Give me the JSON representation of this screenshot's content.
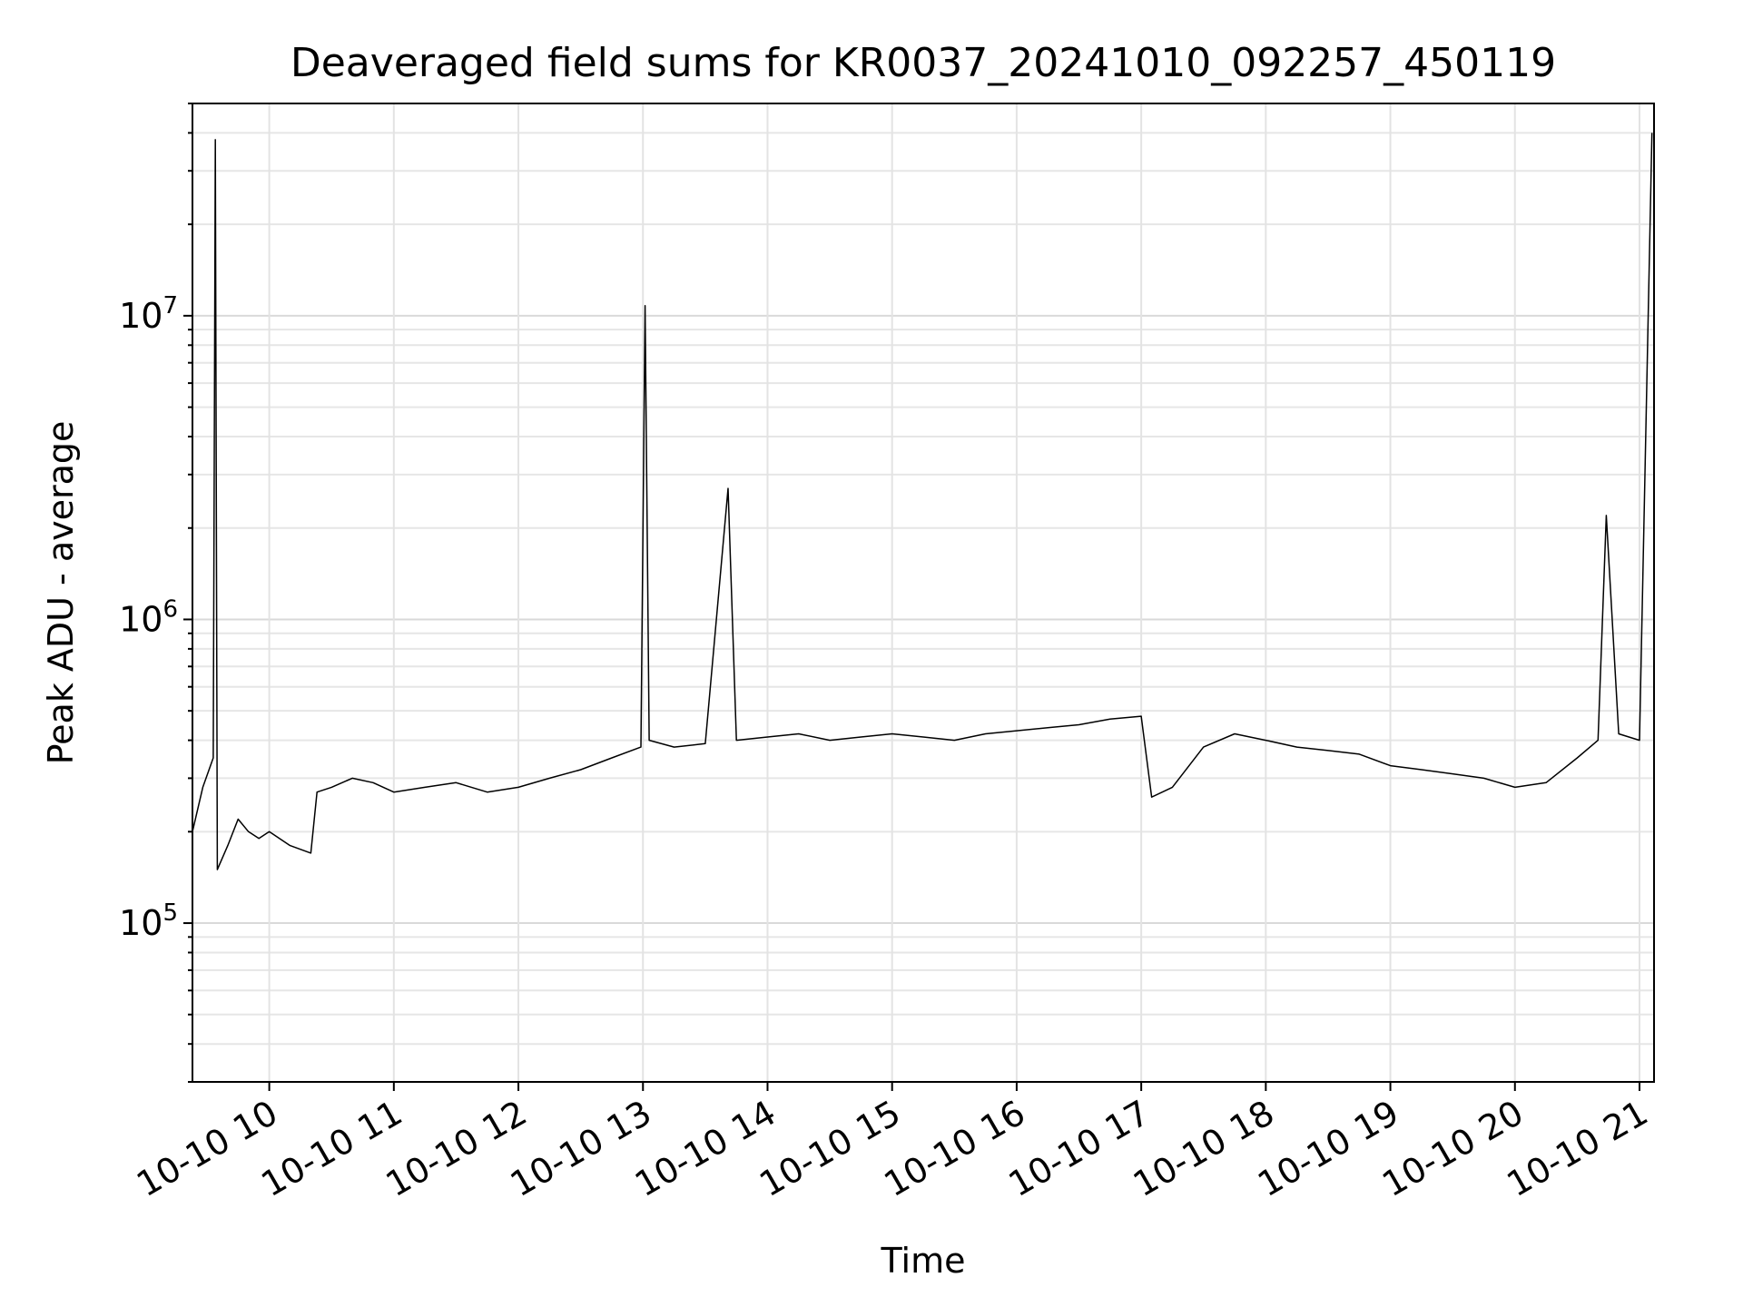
{
  "chart_data": {
    "type": "line",
    "title": "Deaveraged field sums for KR0037_20241010_092257_450119",
    "xlabel": "Time",
    "ylabel": "Peak ADU - average",
    "y_scale": "log",
    "ylim": [
      30000,
      50000000
    ],
    "xlim": [
      "2024-10-10 09:23",
      "2024-10-10 21:07"
    ],
    "grid": true,
    "legend": "none",
    "line_color": "#000000",
    "x_ticks": [
      {
        "t": "2024-10-10 10:00",
        "label": "10-10 10"
      },
      {
        "t": "2024-10-10 11:00",
        "label": "10-10 11"
      },
      {
        "t": "2024-10-10 12:00",
        "label": "10-10 12"
      },
      {
        "t": "2024-10-10 13:00",
        "label": "10-10 13"
      },
      {
        "t": "2024-10-10 14:00",
        "label": "10-10 14"
      },
      {
        "t": "2024-10-10 15:00",
        "label": "10-10 15"
      },
      {
        "t": "2024-10-10 16:00",
        "label": "10-10 16"
      },
      {
        "t": "2024-10-10 17:00",
        "label": "10-10 17"
      },
      {
        "t": "2024-10-10 18:00",
        "label": "10-10 18"
      },
      {
        "t": "2024-10-10 19:00",
        "label": "10-10 19"
      },
      {
        "t": "2024-10-10 20:00",
        "label": "10-10 20"
      },
      {
        "t": "2024-10-10 21:00",
        "label": "10-10 21"
      }
    ],
    "y_ticks": [
      {
        "value": 100000,
        "base": "10",
        "exp": "5"
      },
      {
        "value": 1000000,
        "base": "10",
        "exp": "6"
      },
      {
        "value": 10000000,
        "base": "10",
        "exp": "7"
      }
    ],
    "series": [
      {
        "x": [
          "2024-10-10 09:23",
          "2024-10-10 09:28",
          "2024-10-10 09:33",
          "2024-10-10 09:34",
          "2024-10-10 09:35",
          "2024-10-10 09:40",
          "2024-10-10 09:45",
          "2024-10-10 09:50",
          "2024-10-10 09:55",
          "2024-10-10 10:00",
          "2024-10-10 10:10",
          "2024-10-10 10:20",
          "2024-10-10 10:23",
          "2024-10-10 10:30",
          "2024-10-10 10:40",
          "2024-10-10 10:50",
          "2024-10-10 11:00",
          "2024-10-10 11:15",
          "2024-10-10 11:30",
          "2024-10-10 11:45",
          "2024-10-10 12:00",
          "2024-10-10 12:15",
          "2024-10-10 12:30",
          "2024-10-10 12:45",
          "2024-10-10 12:59",
          "2024-10-10 13:01",
          "2024-10-10 13:03",
          "2024-10-10 13:15",
          "2024-10-10 13:30",
          "2024-10-10 13:41",
          "2024-10-10 13:45",
          "2024-10-10 14:00",
          "2024-10-10 14:15",
          "2024-10-10 14:30",
          "2024-10-10 14:45",
          "2024-10-10 15:00",
          "2024-10-10 15:15",
          "2024-10-10 15:30",
          "2024-10-10 15:45",
          "2024-10-10 16:00",
          "2024-10-10 16:15",
          "2024-10-10 16:30",
          "2024-10-10 16:45",
          "2024-10-10 17:00",
          "2024-10-10 17:05",
          "2024-10-10 17:15",
          "2024-10-10 17:30",
          "2024-10-10 17:45",
          "2024-10-10 18:00",
          "2024-10-10 18:15",
          "2024-10-10 18:30",
          "2024-10-10 18:45",
          "2024-10-10 19:00",
          "2024-10-10 19:15",
          "2024-10-10 19:30",
          "2024-10-10 19:45",
          "2024-10-10 20:00",
          "2024-10-10 20:15",
          "2024-10-10 20:30",
          "2024-10-10 20:40",
          "2024-10-10 20:44",
          "2024-10-10 20:50",
          "2024-10-10 21:00",
          "2024-10-10 21:06"
        ],
        "y": [
          200000,
          280000,
          350000,
          38000000,
          150000,
          180000,
          220000,
          200000,
          190000,
          200000,
          180000,
          170000,
          270000,
          280000,
          300000,
          290000,
          270000,
          280000,
          290000,
          270000,
          280000,
          300000,
          320000,
          350000,
          380000,
          10800000,
          400000,
          380000,
          390000,
          2700000,
          400000,
          410000,
          420000,
          400000,
          410000,
          420000,
          410000,
          400000,
          420000,
          430000,
          440000,
          450000,
          470000,
          480000,
          260000,
          280000,
          380000,
          420000,
          400000,
          380000,
          370000,
          360000,
          330000,
          320000,
          310000,
          300000,
          280000,
          290000,
          350000,
          400000,
          2200000,
          420000,
          400000,
          40000000
        ]
      }
    ]
  }
}
